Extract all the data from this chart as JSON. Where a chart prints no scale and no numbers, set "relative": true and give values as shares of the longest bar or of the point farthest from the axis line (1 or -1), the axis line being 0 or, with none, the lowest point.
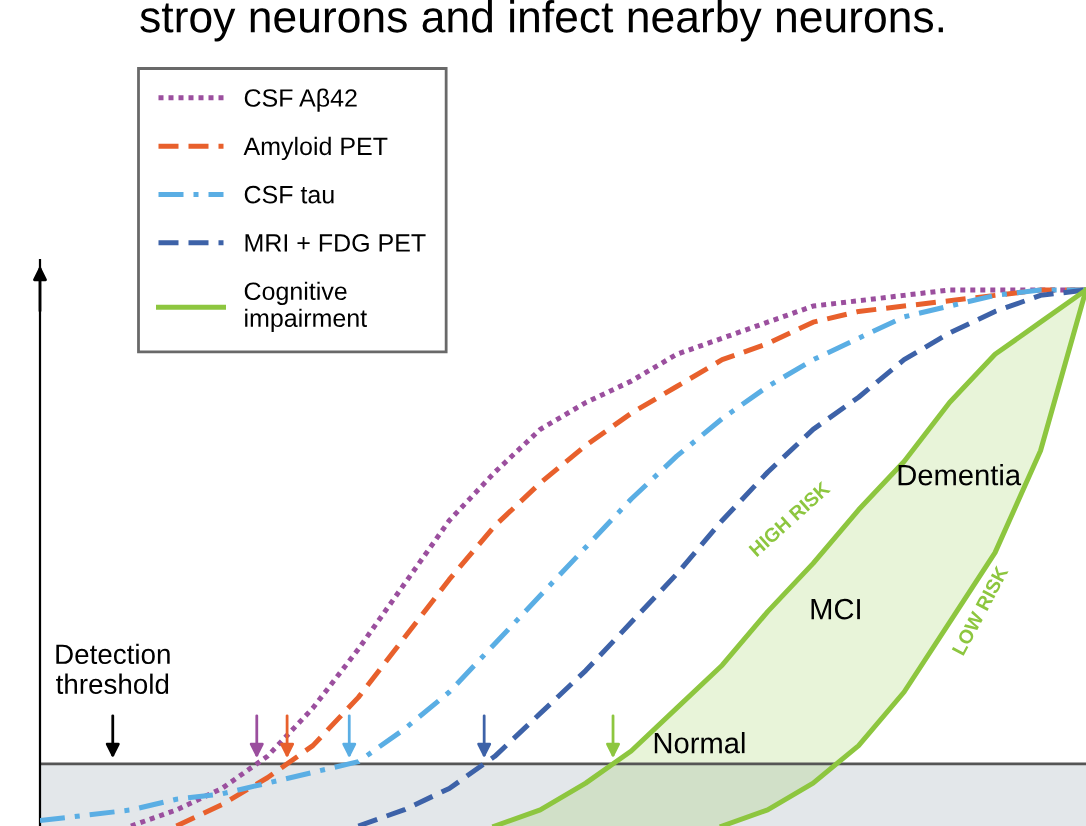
{
  "chart_data": {
    "type": "line",
    "relative": true,
    "categories": [
      null,
      null,
      null,
      null,
      null,
      null,
      null,
      null,
      null,
      null,
      null,
      null,
      null,
      null,
      null,
      null,
      null,
      null,
      null,
      null,
      null,
      null,
      null,
      null
    ],
    "series": [
      {
        "name": "CSF Aβ42",
        "color": "#9b4f9e",
        "line_style": "dotted",
        "values": [
          null,
          null,
          0,
          0.03,
          0.07,
          0.13,
          0.22,
          0.33,
          0.45,
          0.57,
          0.66,
          0.74,
          0.79,
          0.83,
          0.88,
          0.91,
          0.94,
          0.97,
          0.98,
          0.99,
          1.0,
          1.0,
          1.0,
          1.0
        ]
      },
      {
        "name": "Amyloid PET",
        "color": "#e8602c",
        "line_style": "dashed",
        "values": [
          null,
          null,
          null,
          0,
          0.04,
          0.09,
          0.15,
          0.24,
          0.35,
          0.46,
          0.56,
          0.64,
          0.71,
          0.77,
          0.82,
          0.87,
          0.9,
          0.94,
          0.96,
          0.97,
          0.98,
          0.99,
          1.0,
          1.0
        ]
      },
      {
        "name": "CSF tau",
        "color": "#5aaee4",
        "line_style": "dashdot",
        "values": [
          0.01,
          0.02,
          0.03,
          0.05,
          0.06,
          0.08,
          0.1,
          0.12,
          0.18,
          0.25,
          0.34,
          0.43,
          0.52,
          0.61,
          0.69,
          0.76,
          0.82,
          0.87,
          0.91,
          0.95,
          0.97,
          0.99,
          1.0,
          1.0
        ]
      },
      {
        "name": "MRI + FDG PET",
        "color": "#3d62a8",
        "line_style": "dashed",
        "values": [
          null,
          null,
          null,
          null,
          null,
          null,
          null,
          0,
          0.03,
          0.07,
          0.13,
          0.21,
          0.29,
          0.38,
          0.47,
          0.57,
          0.66,
          0.74,
          0.8,
          0.87,
          0.92,
          0.96,
          0.99,
          1.0
        ]
      },
      {
        "name": "Cognitive impairment",
        "color": "#8dc63f",
        "line_style": "solid",
        "values": [
          null,
          null,
          null,
          null,
          null,
          null,
          null,
          null,
          null,
          null,
          0,
          0.03,
          0.08,
          0.14,
          0.22,
          0.3,
          0.4,
          0.49,
          0.59,
          0.68,
          0.79,
          0.88,
          0.94,
          1.0
        ],
        "upper": [
          null,
          null,
          null,
          null,
          null,
          null,
          null,
          null,
          null,
          null,
          0,
          0.03,
          0.08,
          0.14,
          0.22,
          0.3,
          0.4,
          0.49,
          0.59,
          0.68,
          0.79,
          0.88,
          0.94,
          1.0
        ],
        "lower": [
          null,
          null,
          null,
          null,
          null,
          null,
          null,
          null,
          null,
          null,
          0,
          0,
          0,
          0,
          0,
          0,
          0.03,
          0.08,
          0.15,
          0.25,
          0.38,
          0.51,
          0.7,
          1.0
        ]
      },
      {
        "color": "#8dc63f",
        "line_style": "solid",
        "values": [
          null,
          null,
          null,
          null,
          null,
          null,
          null,
          null,
          null,
          null,
          null,
          null,
          null,
          null,
          null,
          0,
          0.03,
          0.08,
          0.15,
          0.25,
          0.38,
          0.51,
          0.7,
          1.0
        ]
      }
    ],
    "ref_lines": [
      {
        "axis": "y",
        "value": 0.116,
        "label": "Detection threshold",
        "color": "#555555"
      }
    ],
    "bands": [
      {
        "axis": "y",
        "from": 0,
        "to": 0.116,
        "color": "#e3e7ea"
      }
    ],
    "annotations": [
      "stroy neurons and infect nearby neurons.",
      "Dementia",
      "MCI",
      "Normal",
      "HIGH RISK",
      "LOW RISK"
    ],
    "legend": "top left"
  }
}
